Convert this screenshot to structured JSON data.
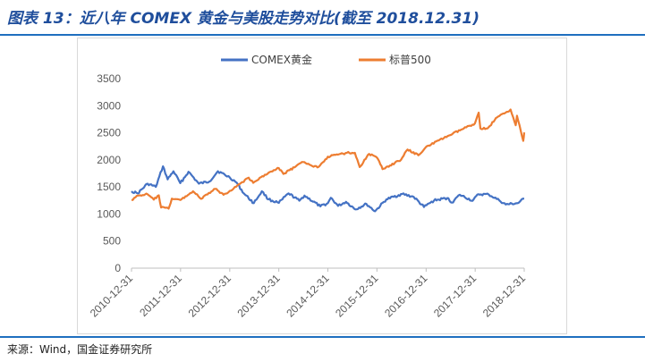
{
  "title": "图表 13：近八年 COMEX 黄金与美股走势对比(截至 2018.12.31)",
  "source": "来源：Wind，国金证券研究所",
  "colors": {
    "gold": "#4472c4",
    "sp500": "#ed7d31",
    "accent": "#1f6fbf"
  },
  "chart_data": {
    "type": "line",
    "title": "",
    "xlabel": "",
    "ylabel": "",
    "ylim": [
      0,
      3500
    ],
    "yticks": [
      "0",
      "500",
      "1000",
      "1500",
      "2000",
      "2500",
      "3000",
      "3500"
    ],
    "xticks": [
      "2010-12-31",
      "2011-12-31",
      "2012-12-31",
      "2013-12-31",
      "2014-12-31",
      "2015-12-31",
      "2016-12-31",
      "2017-12-31",
      "2018-12-31"
    ],
    "legend_position": "top",
    "grid": false,
    "series": [
      {
        "name": "COMEX黄金",
        "color": "#4472c4",
        "points": [
          [
            "2010-12-31",
            1420
          ],
          [
            "2011-02-15",
            1380
          ],
          [
            "2011-04-30",
            1560
          ],
          [
            "2011-06-30",
            1500
          ],
          [
            "2011-08-22",
            1880
          ],
          [
            "2011-09-26",
            1640
          ],
          [
            "2011-11-08",
            1790
          ],
          [
            "2011-12-29",
            1570
          ],
          [
            "2012-02-28",
            1780
          ],
          [
            "2012-05-15",
            1560
          ],
          [
            "2012-08-01",
            1600
          ],
          [
            "2012-10-04",
            1790
          ],
          [
            "2012-12-31",
            1675
          ],
          [
            "2013-02-20",
            1580
          ],
          [
            "2013-04-15",
            1380
          ],
          [
            "2013-06-28",
            1200
          ],
          [
            "2013-08-27",
            1420
          ],
          [
            "2013-10-15",
            1270
          ],
          [
            "2013-12-31",
            1205
          ],
          [
            "2014-03-14",
            1380
          ],
          [
            "2014-06-02",
            1245
          ],
          [
            "2014-07-10",
            1340
          ],
          [
            "2014-11-05",
            1140
          ],
          [
            "2014-12-31",
            1200
          ],
          [
            "2015-01-22",
            1300
          ],
          [
            "2015-03-17",
            1150
          ],
          [
            "2015-05-15",
            1225
          ],
          [
            "2015-07-24",
            1085
          ],
          [
            "2015-10-14",
            1185
          ],
          [
            "2015-12-17",
            1050
          ],
          [
            "2016-03-10",
            1270
          ],
          [
            "2016-07-06",
            1370
          ],
          [
            "2016-09-30",
            1315
          ],
          [
            "2016-12-15",
            1130
          ],
          [
            "2017-02-28",
            1250
          ],
          [
            "2017-06-06",
            1295
          ],
          [
            "2017-07-10",
            1210
          ],
          [
            "2017-09-08",
            1355
          ],
          [
            "2017-12-12",
            1245
          ],
          [
            "2018-01-25",
            1365
          ],
          [
            "2018-04-11",
            1360
          ],
          [
            "2018-06-29",
            1250
          ],
          [
            "2018-08-16",
            1175
          ],
          [
            "2018-11-13",
            1200
          ],
          [
            "2018-12-31",
            1283
          ]
        ]
      },
      {
        "name": "标普500",
        "color": "#ed7d31",
        "points": [
          [
            "2010-12-31",
            1258
          ],
          [
            "2011-02-18",
            1340
          ],
          [
            "2011-04-29",
            1365
          ],
          [
            "2011-06-15",
            1265
          ],
          [
            "2011-07-22",
            1345
          ],
          [
            "2011-08-08",
            1120
          ],
          [
            "2011-10-03",
            1100
          ],
          [
            "2011-10-27",
            1285
          ],
          [
            "2011-12-30",
            1258
          ],
          [
            "2012-04-02",
            1420
          ],
          [
            "2012-06-01",
            1280
          ],
          [
            "2012-09-14",
            1465
          ],
          [
            "2012-11-15",
            1355
          ],
          [
            "2012-12-31",
            1426
          ],
          [
            "2013-05-21",
            1670
          ],
          [
            "2013-06-24",
            1575
          ],
          [
            "2013-09-18",
            1725
          ],
          [
            "2013-12-31",
            1848
          ],
          [
            "2014-02-03",
            1740
          ],
          [
            "2014-06-30",
            1960
          ],
          [
            "2014-10-15",
            1860
          ],
          [
            "2014-12-31",
            2058
          ],
          [
            "2015-05-21",
            2130
          ],
          [
            "2015-07-20",
            2130
          ],
          [
            "2015-08-25",
            1868
          ],
          [
            "2015-11-03",
            2110
          ],
          [
            "2015-12-31",
            2044
          ],
          [
            "2016-02-11",
            1830
          ],
          [
            "2016-06-27",
            2000
          ],
          [
            "2016-08-15",
            2190
          ],
          [
            "2016-11-03",
            2085
          ],
          [
            "2016-12-30",
            2239
          ],
          [
            "2017-06-19",
            2450
          ],
          [
            "2017-12-29",
            2674
          ],
          [
            "2018-01-26",
            2872
          ],
          [
            "2018-02-08",
            2580
          ],
          [
            "2018-04-02",
            2580
          ],
          [
            "2018-06-12",
            2785
          ],
          [
            "2018-09-20",
            2930
          ],
          [
            "2018-10-29",
            2640
          ],
          [
            "2018-11-07",
            2815
          ],
          [
            "2018-12-24",
            2351
          ],
          [
            "2018-12-31",
            2507
          ]
        ]
      }
    ]
  }
}
